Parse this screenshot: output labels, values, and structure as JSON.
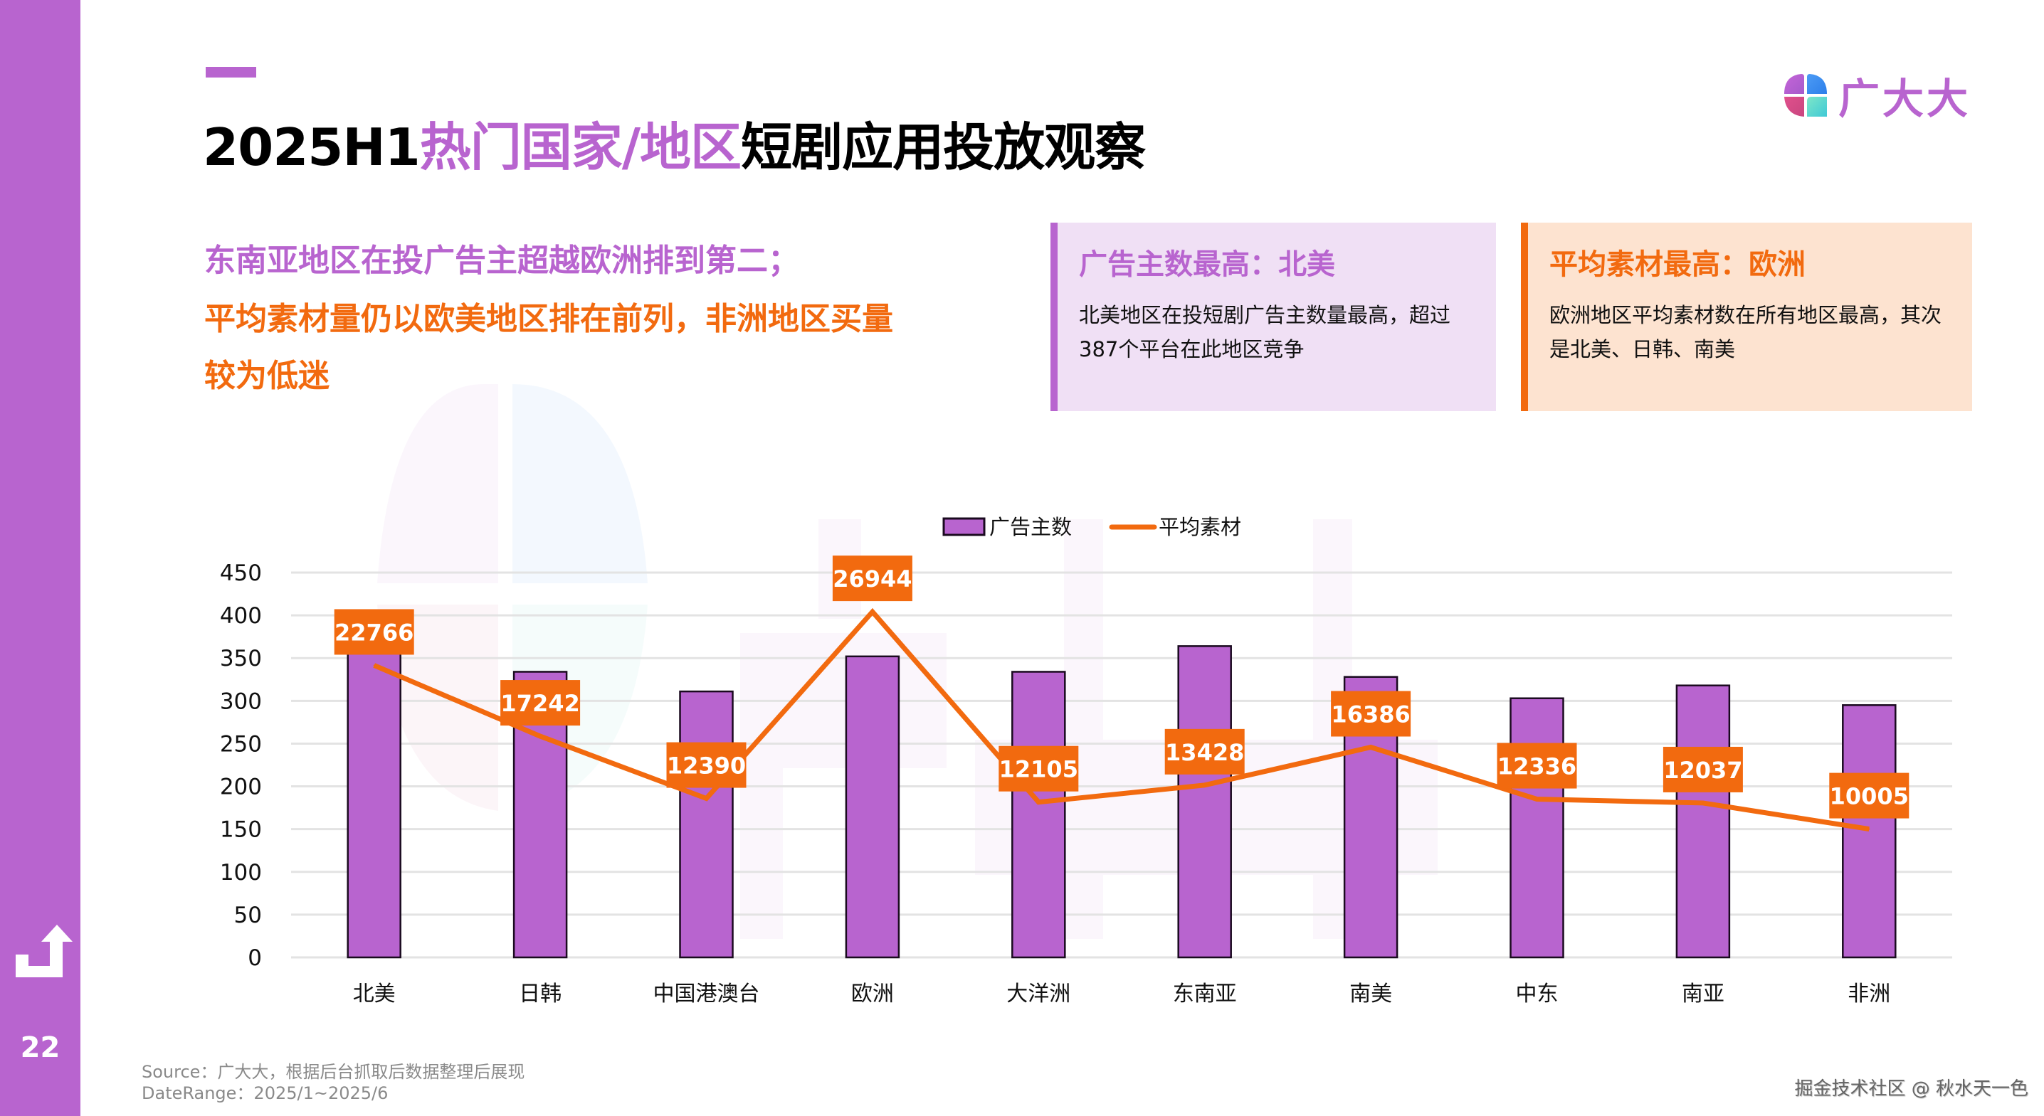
{
  "page": {
    "number": "22",
    "title_parts": [
      {
        "text": "2025H1",
        "accent": false
      },
      {
        "text": "热门国家/地区",
        "accent": true
      },
      {
        "text": "短剧应用投放观察",
        "accent": false
      }
    ],
    "brand_name": "广大大",
    "colors": {
      "purple": "#B864CF",
      "orange": "#F26A0F",
      "purple_card_bg": "#F0E0F5",
      "orange_card_bg": "#FDE3D0"
    }
  },
  "summary": {
    "line1": "东南亚地区在投广告主超越欧洲排到第二；",
    "line2": "平均素材量仍以欧美地区排在前列，非洲地区买量",
    "line3": "较为低迷"
  },
  "cards": [
    {
      "title": "广告主数最高：北美",
      "body": "北美地区在投短剧广告主数量最高，超过387个平台在此地区竞争"
    },
    {
      "title": "平均素材最高：欧洲",
      "body": "欧洲地区平均素材数在所有地区最高，其次是北美、日韩、南美"
    }
  ],
  "chart_data": {
    "type": "bar",
    "title": "",
    "xlabel": "",
    "ylabel": "",
    "categories": [
      "北美",
      "日韩",
      "中国港澳台",
      "欧洲",
      "大洋洲",
      "东南亚",
      "南美",
      "中东",
      "南亚",
      "非洲"
    ],
    "series": [
      {
        "name": "广告主数",
        "type": "bar",
        "axis": "left",
        "color": "#B864CF",
        "values": [
          387,
          334,
          311,
          352,
          334,
          364,
          328,
          303,
          318,
          295
        ]
      },
      {
        "name": "平均素材",
        "type": "line",
        "axis": "right-hidden",
        "color": "#F26A0F",
        "values": [
          22766,
          17242,
          12390,
          26944,
          12105,
          13428,
          16386,
          12336,
          12037,
          10005
        ],
        "data_labels": [
          "22766",
          "17242",
          "12390",
          "26944",
          "12105",
          "13428",
          "16386",
          "12336",
          "12037",
          "10005"
        ]
      }
    ],
    "ylim": [
      0,
      450
    ],
    "y2lim": [
      0,
      30000
    ],
    "yticks": [
      "0",
      "50",
      "100",
      "150",
      "200",
      "250",
      "300",
      "350",
      "400",
      "450"
    ],
    "grid": true,
    "legend": {
      "position": "top-center",
      "entries": [
        "广告主数",
        "平均素材"
      ]
    }
  },
  "footer": {
    "source": "Source：广大大，根据后台抓取后数据整理后展现",
    "date_range": "DateRange：2025/1~2025/6",
    "credit": "掘金技术社区 @ 秋水天一色"
  }
}
